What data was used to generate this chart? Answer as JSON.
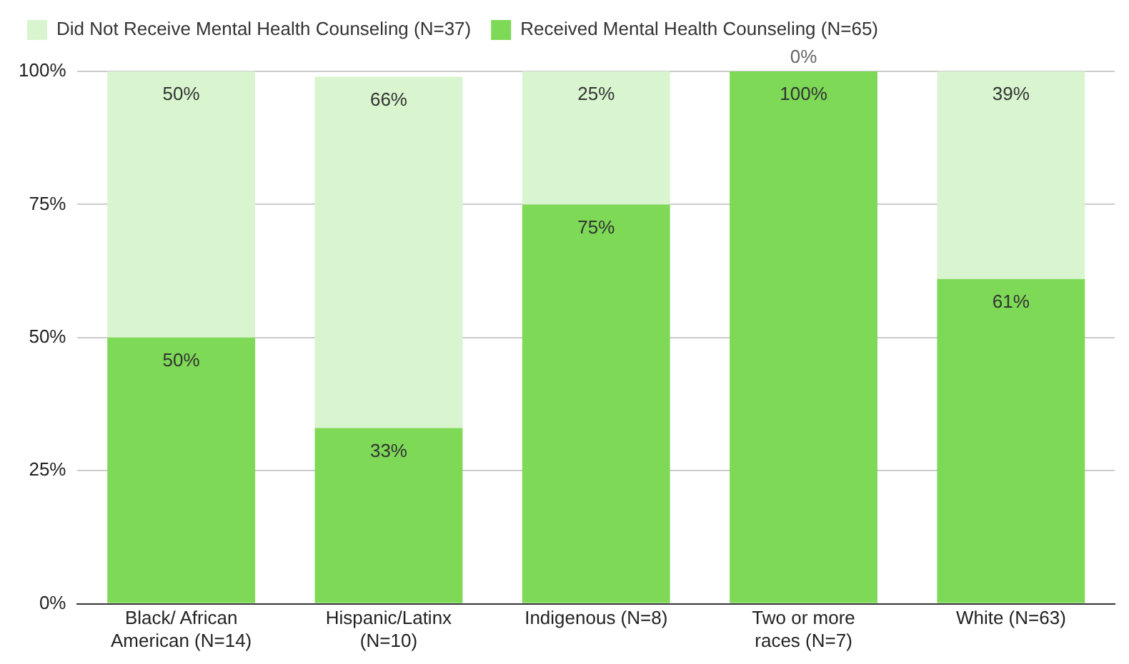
{
  "chart_data": {
    "type": "bar",
    "stacked": true,
    "categories": [
      "Black/ African\nAmerican (N=14)",
      "Hispanic/Latinx\n(N=10)",
      "Indigenous (N=8)",
      "Two or more\nraces (N=7)",
      "White (N=63)"
    ],
    "series": [
      {
        "name": "Received Mental Health Counseling (N=65)",
        "color": "#7ed957",
        "values": [
          50,
          33,
          75,
          100,
          61
        ],
        "value_labels": [
          "50%",
          "33%",
          "75%",
          "100%",
          "61%"
        ]
      },
      {
        "name": "Did Not Receive Mental Health Counseling (N=37)",
        "color": "#d9f5cf",
        "values": [
          50,
          66,
          25,
          0,
          39
        ],
        "value_labels": [
          "50%",
          "66%",
          "25%",
          "0%",
          "39%"
        ]
      }
    ],
    "ylim": [
      0,
      100
    ],
    "yticks": [
      {
        "value": 0,
        "label": "0%"
      },
      {
        "value": 25,
        "label": "25%"
      },
      {
        "value": 50,
        "label": "50%"
      },
      {
        "value": 75,
        "label": "75%"
      },
      {
        "value": 100,
        "label": "100%"
      }
    ],
    "grid": "y",
    "legend": "top left"
  }
}
